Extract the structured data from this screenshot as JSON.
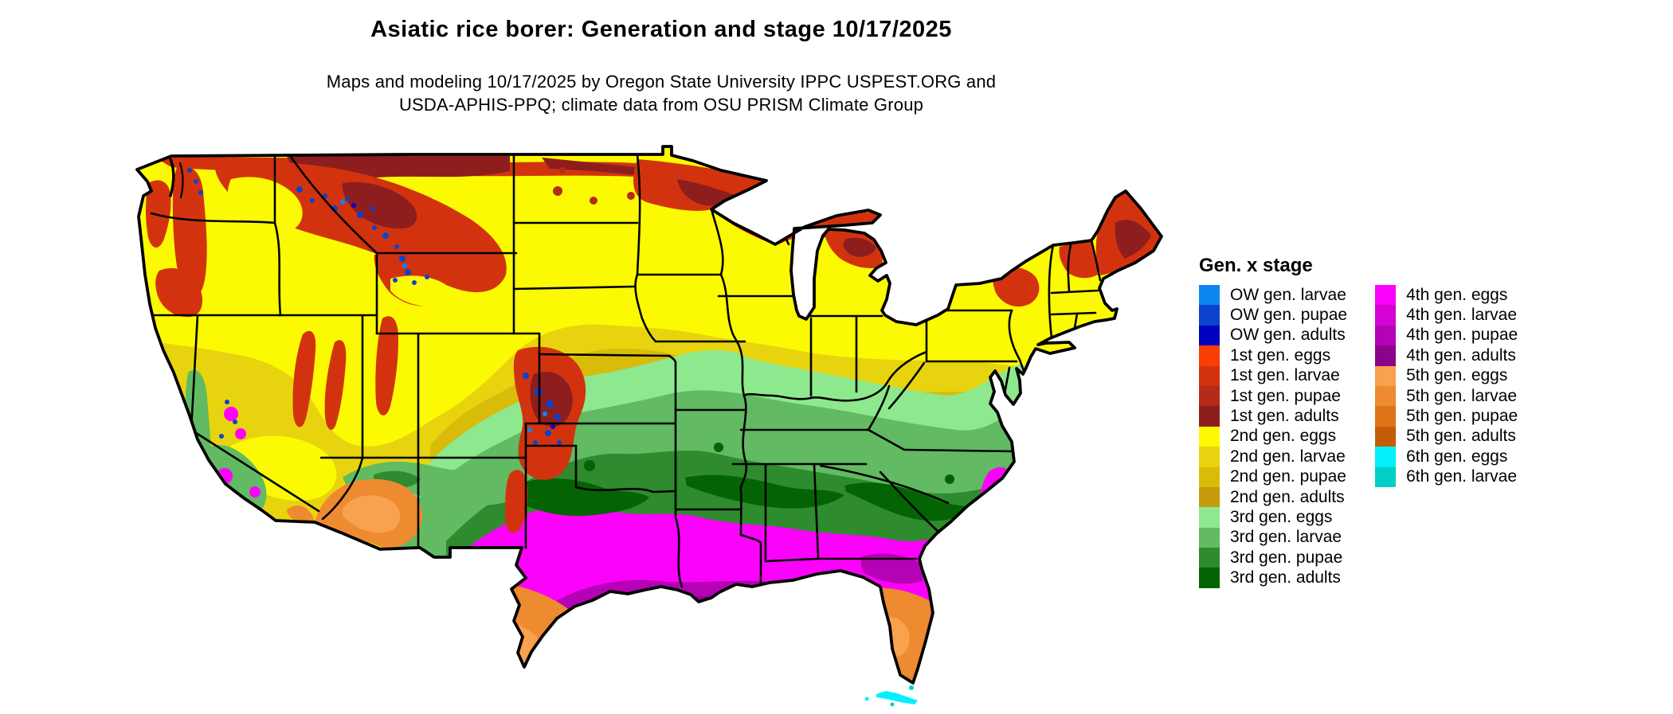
{
  "header": {
    "title": "Asiatic rice borer: Generation and stage 10/17/2025",
    "subtitle_line1": "Maps and modeling 10/17/2025 by Oregon State University IPPC USPEST.ORG and",
    "subtitle_line2": "USDA-APHIS-PPQ; climate data from OSU PRISM Climate Group"
  },
  "legend": {
    "title": "Gen. x stage",
    "columns": [
      [
        {
          "label": "OW gen. larvae",
          "color": "#0B86F0"
        },
        {
          "label": "OW gen. pupae",
          "color": "#0B42D0"
        },
        {
          "label": "OW gen. adults",
          "color": "#0000C0"
        },
        {
          "label": "1st gen. eggs",
          "color": "#FB3E04"
        },
        {
          "label": "1st gen. larvae",
          "color": "#D2330E"
        },
        {
          "label": "1st gen. pupae",
          "color": "#B52A18"
        },
        {
          "label": "1st gen. adults",
          "color": "#8E1E1E"
        },
        {
          "label": "2nd gen. eggs",
          "color": "#FCFA02"
        },
        {
          "label": "2nd gen. larvae",
          "color": "#E8D40E"
        },
        {
          "label": "2nd gen. pupae",
          "color": "#D9BC0A"
        },
        {
          "label": "2nd gen. adults",
          "color": "#C49C0C"
        },
        {
          "label": "3rd gen. eggs",
          "color": "#8EE88E"
        },
        {
          "label": "3rd gen. larvae",
          "color": "#62BA62"
        },
        {
          "label": "3rd gen. pupae",
          "color": "#2E8B2E"
        },
        {
          "label": "3rd gen. adults",
          "color": "#046404"
        }
      ],
      [
        {
          "label": "4th gen. eggs",
          "color": "#FB02FB"
        },
        {
          "label": "4th gen. larvae",
          "color": "#D402D4"
        },
        {
          "label": "4th gen. pupae",
          "color": "#B402B4"
        },
        {
          "label": "4th gen. adults",
          "color": "#8B028B"
        },
        {
          "label": "5th gen. eggs",
          "color": "#F8A14E"
        },
        {
          "label": "5th gen. larvae",
          "color": "#EE8A30"
        },
        {
          "label": "5th gen. pupae",
          "color": "#DE741A"
        },
        {
          "label": "5th gen. adults",
          "color": "#C45C08"
        },
        {
          "label": "6th gen. eggs",
          "color": "#02F0FB"
        },
        {
          "label": "6th gen. larvae",
          "color": "#01CFC5"
        }
      ]
    ]
  }
}
